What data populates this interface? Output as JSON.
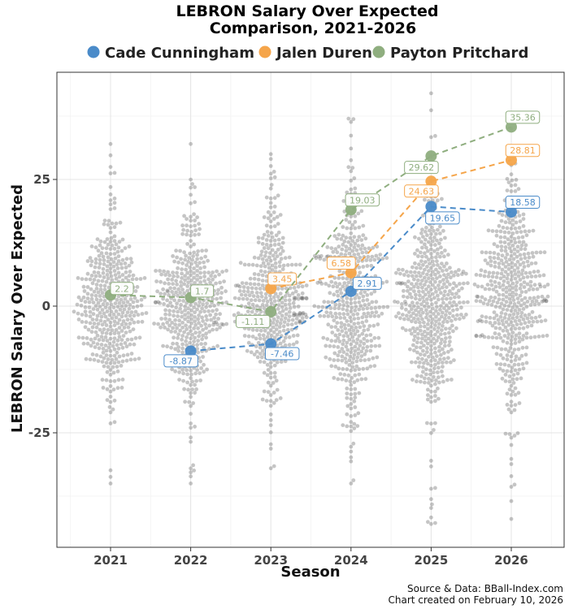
{
  "chart_data": {
    "type": "scatter",
    "title": "LEBRON Salary Over Expected Comparison, 2021-2026",
    "title_lines": [
      "LEBRON Salary Over Expected",
      "Comparison, 2021-2026"
    ],
    "xlabel": "Season",
    "ylabel": "LEBRON Salary Over Expected",
    "categories": [
      "2021",
      "2022",
      "2023",
      "2024",
      "2025",
      "2026"
    ],
    "yticks": [
      -25,
      0,
      25
    ],
    "ytick_labels": [
      "-25",
      "0",
      "25"
    ],
    "ylim": [
      -47,
      46
    ],
    "legend_position": "top",
    "series": [
      {
        "name": "Cade Cunningham",
        "color": "#4a8bc9",
        "values": [
          null,
          -8.87,
          -7.46,
          2.91,
          19.65,
          18.58
        ],
        "labels": [
          "",
          "-8.87",
          "-7.46",
          "2.91",
          "19.65",
          "18.58"
        ]
      },
      {
        "name": "Jalen Duren",
        "color": "#f5a54a",
        "values": [
          null,
          null,
          3.45,
          6.58,
          24.63,
          28.81
        ],
        "labels": [
          "",
          "",
          "3.45",
          "6.58",
          "24.63",
          "28.81"
        ]
      },
      {
        "name": "Payton Pritchard",
        "color": "#8fae7f",
        "values": [
          2.2,
          1.7,
          -1.11,
          19.03,
          29.62,
          35.36
        ],
        "labels": [
          "2.2",
          "1.7",
          "-1.11",
          "19.03",
          "29.62",
          "35.36"
        ]
      }
    ],
    "background_distribution": {
      "description": "League-wide player values per season shown as a grey beeswarm",
      "seasons": [
        {
          "season": "2021",
          "center": 0,
          "spread": 8,
          "count": 420,
          "min": -35,
          "max": 32
        },
        {
          "season": "2022",
          "center": 0,
          "spread": 9,
          "count": 430,
          "min": -35,
          "max": 32
        },
        {
          "season": "2023",
          "center": 1,
          "spread": 9,
          "count": 440,
          "min": -32,
          "max": 30
        },
        {
          "season": "2024",
          "center": 0,
          "spread": 11,
          "count": 460,
          "min": -35,
          "max": 37
        },
        {
          "season": "2025",
          "center": 0,
          "spread": 10,
          "count": 480,
          "min": -43,
          "max": 42
        },
        {
          "season": "2026",
          "center": 2,
          "spread": 10,
          "count": 470,
          "min": -42,
          "max": 35
        }
      ],
      "point_color": "#666666"
    },
    "source_lines": [
      "Source & Data: BBall-Index.com",
      "Chart created on February 10, 2026"
    ]
  }
}
